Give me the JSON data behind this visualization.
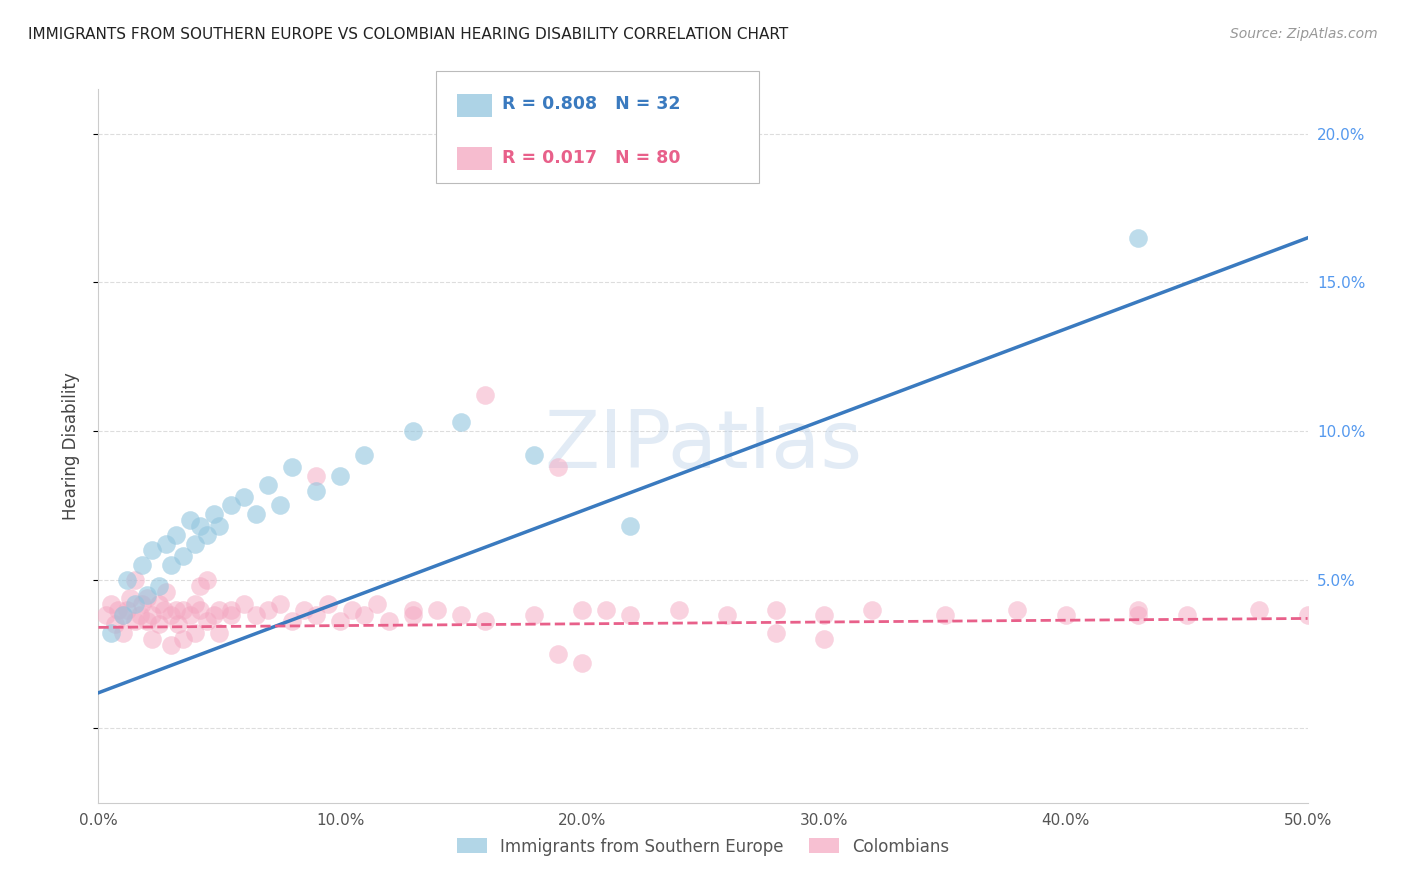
{
  "title": "IMMIGRANTS FROM SOUTHERN EUROPE VS COLOMBIAN HEARING DISABILITY CORRELATION CHART",
  "source": "Source: ZipAtlas.com",
  "ylabel": "Hearing Disability",
  "legend_labels": [
    "Immigrants from Southern Europe",
    "Colombians"
  ],
  "r_blue": 0.808,
  "n_blue": 32,
  "r_pink": 0.017,
  "n_pink": 80,
  "blue_color": "#92c5de",
  "pink_color": "#f4a6c0",
  "blue_line_color": "#3a7abf",
  "pink_line_color": "#e8608a",
  "xlim": [
    0.0,
    0.5
  ],
  "ylim": [
    -0.025,
    0.215
  ],
  "xticks": [
    0.0,
    0.1,
    0.2,
    0.3,
    0.4,
    0.5
  ],
  "yticks_right": [
    0.05,
    0.1,
    0.15,
    0.2
  ],
  "watermark": "ZIPatlas",
  "background_color": "#ffffff",
  "grid_color": "#dddddd",
  "blue_line_x": [
    0.0,
    0.5
  ],
  "blue_line_y": [
    0.012,
    0.165
  ],
  "pink_line_x": [
    0.0,
    0.5
  ],
  "pink_line_y": [
    0.034,
    0.037
  ],
  "blue_scatter_x": [
    0.005,
    0.01,
    0.012,
    0.015,
    0.018,
    0.02,
    0.022,
    0.025,
    0.028,
    0.03,
    0.032,
    0.035,
    0.038,
    0.04,
    0.042,
    0.045,
    0.048,
    0.05,
    0.055,
    0.06,
    0.065,
    0.07,
    0.075,
    0.08,
    0.09,
    0.1,
    0.11,
    0.13,
    0.15,
    0.18,
    0.22,
    0.43
  ],
  "blue_scatter_y": [
    0.032,
    0.038,
    0.05,
    0.042,
    0.055,
    0.045,
    0.06,
    0.048,
    0.062,
    0.055,
    0.065,
    0.058,
    0.07,
    0.062,
    0.068,
    0.065,
    0.072,
    0.068,
    0.075,
    0.078,
    0.072,
    0.082,
    0.075,
    0.088,
    0.08,
    0.085,
    0.092,
    0.1,
    0.103,
    0.092,
    0.068,
    0.165
  ],
  "pink_scatter_x": [
    0.003,
    0.005,
    0.007,
    0.008,
    0.01,
    0.01,
    0.012,
    0.013,
    0.015,
    0.015,
    0.017,
    0.018,
    0.02,
    0.02,
    0.022,
    0.022,
    0.025,
    0.025,
    0.027,
    0.028,
    0.03,
    0.03,
    0.032,
    0.033,
    0.035,
    0.035,
    0.038,
    0.04,
    0.04,
    0.042,
    0.042,
    0.045,
    0.045,
    0.048,
    0.05,
    0.05,
    0.055,
    0.055,
    0.06,
    0.065,
    0.07,
    0.075,
    0.08,
    0.085,
    0.09,
    0.095,
    0.1,
    0.105,
    0.11,
    0.115,
    0.12,
    0.13,
    0.14,
    0.15,
    0.16,
    0.18,
    0.2,
    0.22,
    0.24,
    0.26,
    0.28,
    0.3,
    0.32,
    0.35,
    0.38,
    0.4,
    0.43,
    0.45,
    0.48,
    0.5,
    0.19,
    0.21,
    0.16,
    0.28,
    0.19,
    0.09,
    0.13,
    0.3,
    0.43,
    0.2
  ],
  "pink_scatter_y": [
    0.038,
    0.042,
    0.035,
    0.04,
    0.038,
    0.032,
    0.04,
    0.044,
    0.036,
    0.05,
    0.038,
    0.042,
    0.036,
    0.044,
    0.038,
    0.03,
    0.042,
    0.035,
    0.04,
    0.046,
    0.038,
    0.028,
    0.04,
    0.035,
    0.04,
    0.03,
    0.038,
    0.042,
    0.032,
    0.04,
    0.048,
    0.036,
    0.05,
    0.038,
    0.04,
    0.032,
    0.04,
    0.038,
    0.042,
    0.038,
    0.04,
    0.042,
    0.036,
    0.04,
    0.038,
    0.042,
    0.036,
    0.04,
    0.038,
    0.042,
    0.036,
    0.038,
    0.04,
    0.038,
    0.036,
    0.038,
    0.04,
    0.038,
    0.04,
    0.038,
    0.04,
    0.038,
    0.04,
    0.038,
    0.04,
    0.038,
    0.04,
    0.038,
    0.04,
    0.038,
    0.025,
    0.04,
    0.112,
    0.032,
    0.088,
    0.085,
    0.04,
    0.03,
    0.038,
    0.022
  ]
}
